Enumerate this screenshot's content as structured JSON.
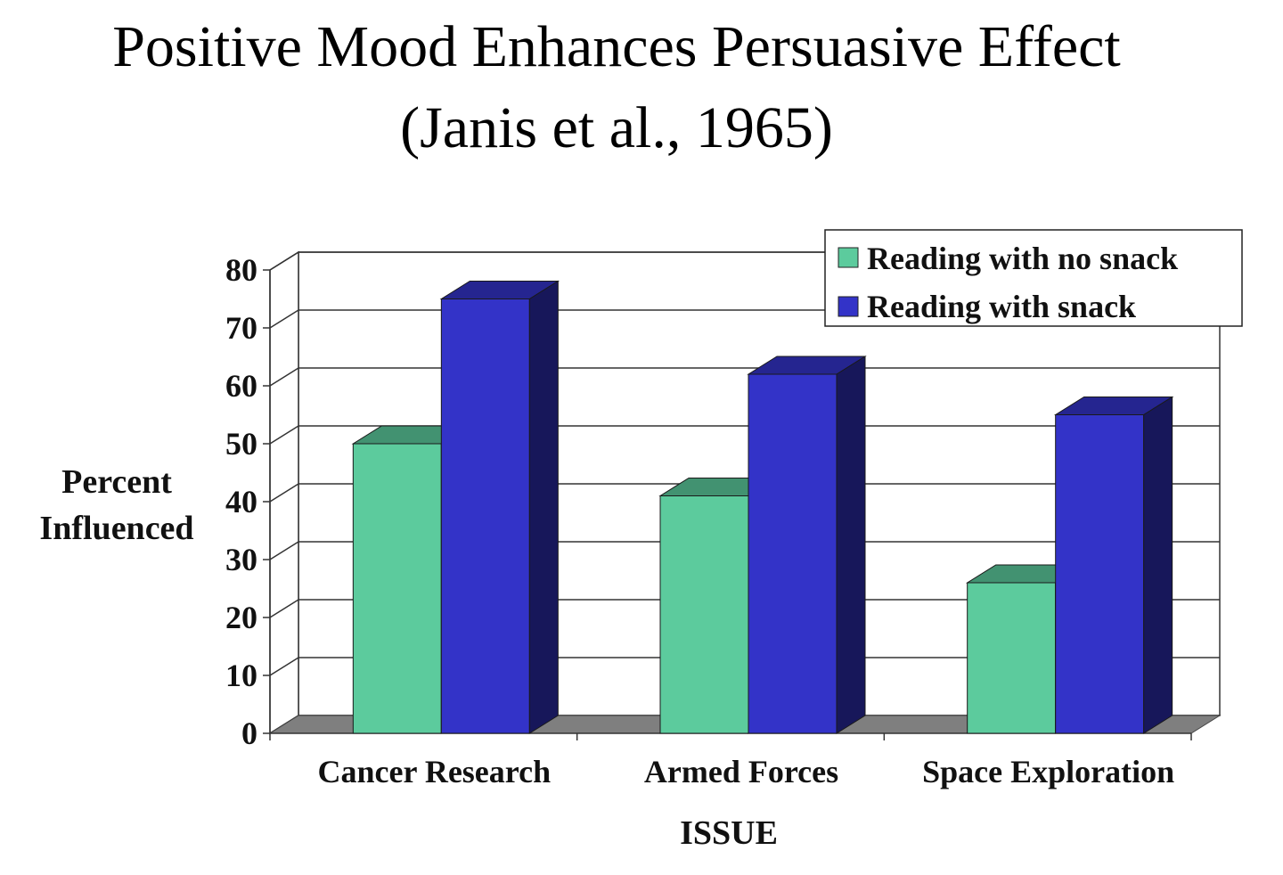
{
  "chart_data": {
    "type": "bar",
    "title": "Positive Mood Enhances Persuasive Effect",
    "subtitle": "(Janis et al., 1965)",
    "xlabel": "ISSUE",
    "ylabel_lines": [
      "Percent",
      "Influenced"
    ],
    "categories": [
      "Cancer Research",
      "Armed Forces",
      "Space Exploration"
    ],
    "series": [
      {
        "name": "Reading with no snack",
        "color": "#5ccb9d",
        "values": [
          50,
          41,
          26
        ]
      },
      {
        "name": "Reading with snack",
        "color": "#3333c8",
        "values": [
          75,
          62,
          55
        ]
      }
    ],
    "ylim": [
      0,
      80
    ],
    "yticks": [
      "0",
      "10",
      "20",
      "30",
      "40",
      "50",
      "60",
      "70",
      "80"
    ],
    "grid": true,
    "legend_position": "top-right",
    "style": "3d"
  }
}
